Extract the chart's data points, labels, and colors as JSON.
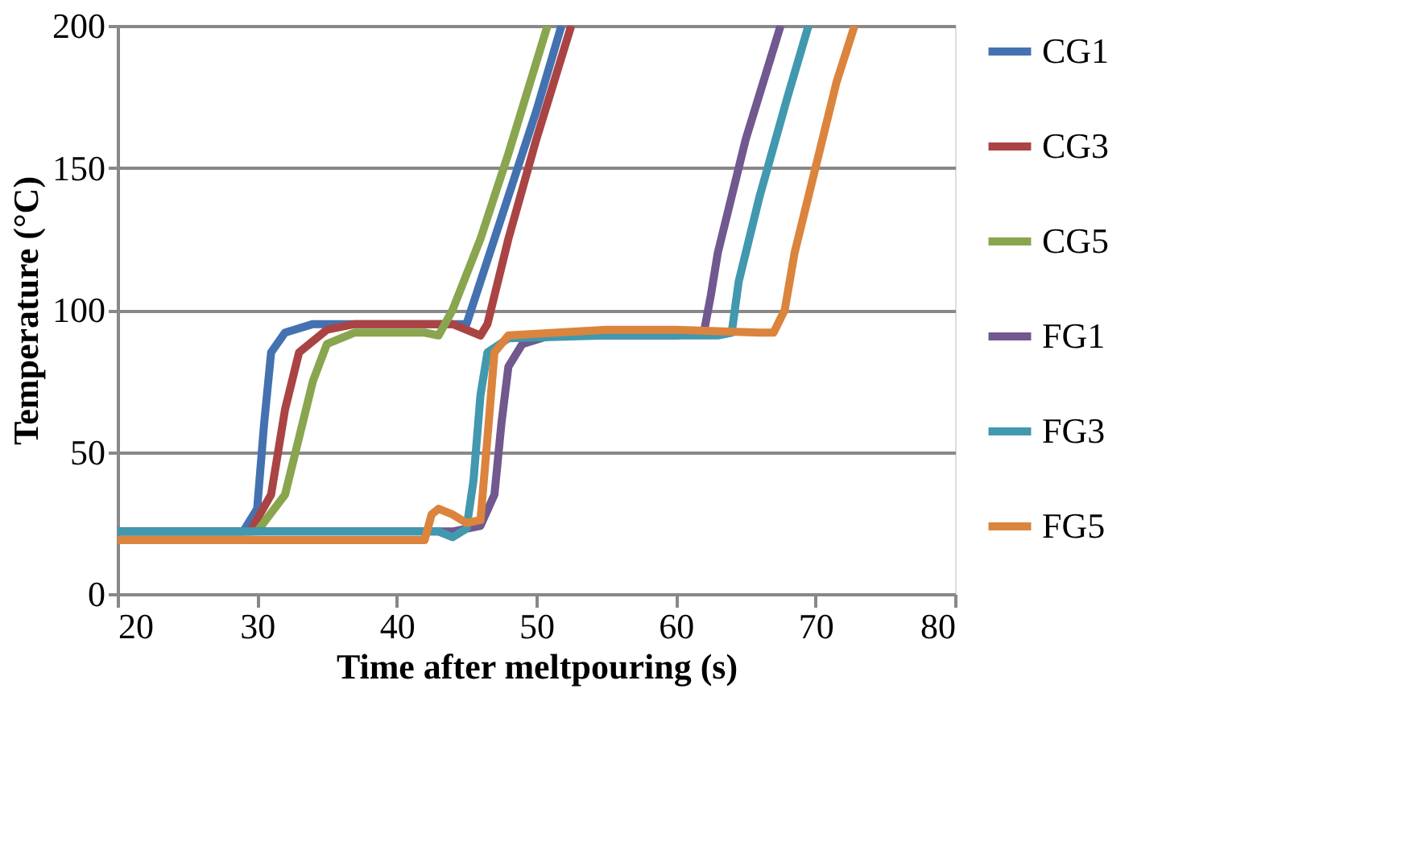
{
  "chart_data": {
    "type": "line",
    "xlabel": "Time after meltpouring (s)",
    "ylabel": "Temperature (°C)",
    "xlim": [
      20,
      80
    ],
    "xticks": [
      20,
      30,
      40,
      50,
      60,
      70,
      80
    ],
    "ylim": [
      0,
      200
    ],
    "yticks": [
      0,
      50,
      100,
      150,
      200
    ],
    "grid": "y",
    "legend": "right",
    "marker": "none",
    "line_style": "solid",
    "series": [
      {
        "name": "CG1",
        "color": "#4472b0",
        "x": [
          20,
          29,
          30,
          30.5,
          31,
          32,
          34,
          44,
          45,
          46,
          48,
          50,
          51.8
        ],
        "values": [
          22,
          22,
          30,
          60,
          85,
          92,
          95,
          95,
          95,
          110,
          140,
          170,
          200
        ]
      },
      {
        "name": "CG3",
        "color": "#aa4444",
        "x": [
          20,
          29.5,
          31,
          32,
          33,
          35,
          37,
          44,
          46,
          46.5,
          48,
          50,
          52.5
        ],
        "values": [
          22,
          22,
          35,
          65,
          85,
          93,
          95,
          95,
          91,
          95,
          125,
          160,
          200
        ]
      },
      {
        "name": "CG5",
        "color": "#89a54e",
        "x": [
          20,
          30,
          32,
          33,
          34,
          35,
          37,
          42,
          43,
          44,
          46,
          48,
          50.8
        ],
        "values": [
          22,
          22,
          35,
          55,
          75,
          88,
          92,
          92,
          91,
          100,
          125,
          155,
          200
        ]
      },
      {
        "name": "FG1",
        "color": "#71588f",
        "x": [
          20,
          44,
          46,
          47,
          47.5,
          48,
          49,
          51,
          60,
          62,
          62.5,
          63,
          65,
          67.5
        ],
        "values": [
          22,
          22,
          24,
          35,
          60,
          80,
          88,
          91,
          91,
          92,
          105,
          120,
          160,
          200
        ]
      },
      {
        "name": "FG3",
        "color": "#4198af",
        "x": [
          20,
          43,
          44,
          45,
          45.5,
          46,
          46.5,
          48,
          55,
          63,
          64,
          64.5,
          66,
          68,
          69.5
        ],
        "values": [
          22,
          22,
          20,
          23,
          40,
          70,
          85,
          90,
          91,
          91,
          92,
          110,
          140,
          175,
          200
        ]
      },
      {
        "name": "FG5",
        "color": "#db843d",
        "x": [
          20,
          42,
          42.5,
          43,
          44,
          45,
          46,
          46.5,
          47,
          48,
          55,
          60,
          66,
          67,
          67.8,
          68.5,
          70,
          71.5,
          72.8
        ],
        "values": [
          19,
          19,
          28,
          30,
          28,
          25,
          26,
          55,
          85,
          91,
          93,
          93,
          92,
          92,
          100,
          120,
          150,
          180,
          200
        ]
      }
    ]
  }
}
